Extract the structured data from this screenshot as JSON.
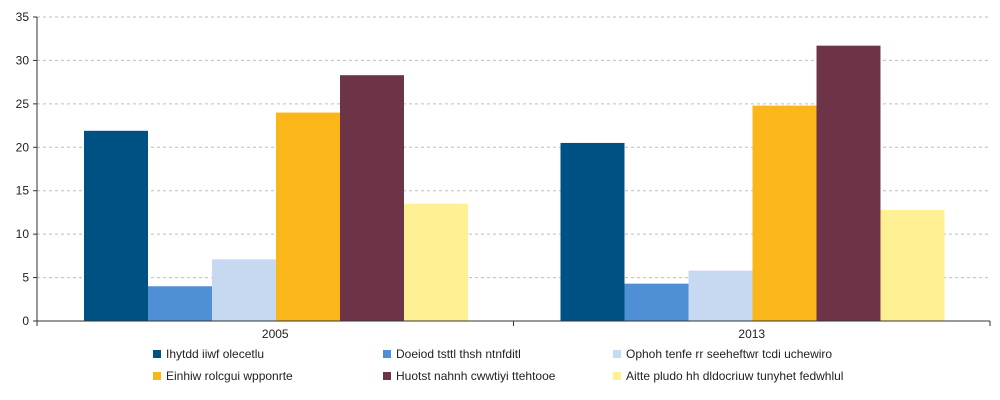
{
  "chart_data": {
    "type": "bar",
    "categories": [
      "2005",
      "2013"
    ],
    "series": [
      {
        "name": "Ihytdd iiwf olecetlu",
        "color": "#005183",
        "values": [
          21.9,
          20.5
        ]
      },
      {
        "name": "Doeiod tsttl thsh ntnfditl",
        "color": "#4f8fd6",
        "values": [
          4.0,
          4.3
        ]
      },
      {
        "name": "Ophoh tenfe rr seeheftwr tcdi uchewiro",
        "color": "#c6d9f1",
        "values": [
          7.1,
          5.8
        ]
      },
      {
        "name": "Einhiw rolcgui wpponrte",
        "color": "#fbb61a",
        "values": [
          24.0,
          24.8
        ]
      },
      {
        "name": "Huotst nahnh cwwtiyi ttehtooe",
        "color": "#6d3448",
        "values": [
          28.3,
          31.7
        ]
      },
      {
        "name": "Aitte pludo hh dldocriuw tunyhet fedwhlul",
        "color": "#fff094",
        "values": [
          13.5,
          12.8
        ]
      }
    ],
    "ylim": [
      0,
      35
    ],
    "yticks": [
      0,
      5,
      10,
      15,
      20,
      25,
      30,
      35
    ],
    "grid": true,
    "legend_position": "bottom",
    "title": "",
    "xlabel": "",
    "ylabel": ""
  }
}
